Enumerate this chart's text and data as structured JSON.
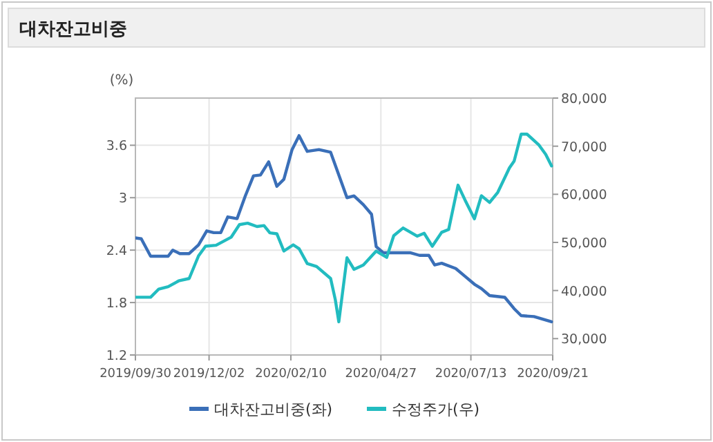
{
  "chart_data": {
    "type": "line",
    "title": "대차잔고비중",
    "ylabel": "(%)",
    "xlim": [
      "2019-09-30",
      "2020-09-21"
    ],
    "xticks": [
      {
        "value": "2019-09-30",
        "label": "2019/09/30"
      },
      {
        "value": "2019-12-02",
        "label": "2019/12/02"
      },
      {
        "value": "2020-02-10",
        "label": "2020/02/10"
      },
      {
        "value": "2020-04-27",
        "label": "2020/04/27"
      },
      {
        "value": "2020-07-13",
        "label": "2020/07/13"
      },
      {
        "value": "2020-09-21",
        "label": "2020/09/21"
      }
    ],
    "ylim": [
      1.2,
      4.14
    ],
    "yticks": [
      1.2,
      1.8,
      2.4,
      3,
      3.6
    ],
    "y2lim": [
      26600,
      80000
    ],
    "y2ticks": [
      {
        "value": 30000,
        "label": "30,000"
      },
      {
        "value": 40000,
        "label": "40,000"
      },
      {
        "value": 50000,
        "label": "50,000"
      },
      {
        "value": 60000,
        "label": "60,000"
      },
      {
        "value": 70000,
        "label": "70,000"
      },
      {
        "value": 80000,
        "label": "80,000"
      }
    ],
    "grid": true,
    "legend": "bottom",
    "line_style": "solid",
    "marker": "none",
    "series": [
      {
        "name": "대차잔고비중(좌)",
        "color": "#3a6fb8",
        "x": [
          "2019-09-30",
          "2019-10-05",
          "2019-10-13",
          "2019-10-28",
          "2019-11-01",
          "2019-11-07",
          "2019-11-15",
          "2019-11-23",
          "2019-11-30",
          "2019-12-06",
          "2019-12-12",
          "2019-12-18",
          "2019-12-26",
          "2020-01-02",
          "2020-01-09",
          "2020-01-15",
          "2020-01-22",
          "2020-01-29",
          "2020-02-04",
          "2020-02-11",
          "2020-02-17",
          "2020-02-24",
          "2020-03-05",
          "2020-03-15",
          "2020-03-29",
          "2020-04-04",
          "2020-04-12",
          "2020-04-19",
          "2020-04-23",
          "2020-04-29",
          "2020-05-22",
          "2020-05-30",
          "2020-06-07",
          "2020-06-12",
          "2020-06-18",
          "2020-06-30",
          "2020-07-08",
          "2020-07-16",
          "2020-07-22",
          "2020-07-29",
          "2020-08-11",
          "2020-08-19",
          "2020-08-25",
          "2020-09-05",
          "2020-09-20"
        ],
        "values": [
          2.54,
          2.53,
          2.33,
          2.33,
          2.4,
          2.36,
          2.36,
          2.46,
          2.62,
          2.6,
          2.6,
          2.78,
          2.76,
          3.02,
          3.25,
          3.26,
          3.41,
          3.13,
          3.21,
          3.55,
          3.71,
          3.53,
          3.55,
          3.52,
          3.0,
          3.02,
          2.92,
          2.81,
          2.44,
          2.37,
          2.37,
          2.34,
          2.34,
          2.23,
          2.25,
          2.19,
          2.1,
          2.01,
          1.96,
          1.88,
          1.86,
          1.73,
          1.65,
          1.64,
          1.58
        ]
      },
      {
        "name": "수정주가(우)",
        "color": "#22bcc0",
        "axis": "y2",
        "x": [
          "2019-09-30",
          "2019-10-13",
          "2019-10-20",
          "2019-10-28",
          "2019-11-06",
          "2019-11-15",
          "2019-11-23",
          "2019-11-29",
          "2019-12-08",
          "2019-12-21",
          "2019-12-28",
          "2020-01-04",
          "2020-01-12",
          "2020-01-18",
          "2020-01-23",
          "2020-01-29",
          "2020-02-04",
          "2020-02-12",
          "2020-02-17",
          "2020-02-24",
          "2020-03-03",
          "2020-03-15",
          "2020-03-19",
          "2020-03-22",
          "2020-03-29",
          "2020-04-04",
          "2020-04-12",
          "2020-04-23",
          "2020-05-02",
          "2020-05-08",
          "2020-05-16",
          "2020-05-28",
          "2020-06-03",
          "2020-06-10",
          "2020-06-18",
          "2020-06-24",
          "2020-07-02",
          "2020-07-08",
          "2020-07-16",
          "2020-07-22",
          "2020-07-29",
          "2020-08-05",
          "2020-08-15",
          "2020-08-19",
          "2020-08-25",
          "2020-08-30",
          "2020-09-09",
          "2020-09-15",
          "2020-09-20"
        ],
        "values": [
          38600,
          38600,
          40300,
          40800,
          42000,
          42500,
          47200,
          49200,
          49400,
          51100,
          53700,
          54000,
          53300,
          53500,
          52000,
          51800,
          48200,
          49500,
          48700,
          45600,
          45000,
          42500,
          38100,
          33500,
          46800,
          44400,
          45300,
          48200,
          46900,
          51400,
          53000,
          51300,
          51900,
          49200,
          52100,
          52700,
          61900,
          58800,
          54900,
          59700,
          58300,
          60400,
          65500,
          66900,
          72500,
          72500,
          70300,
          68300,
          65900
        ]
      }
    ]
  }
}
